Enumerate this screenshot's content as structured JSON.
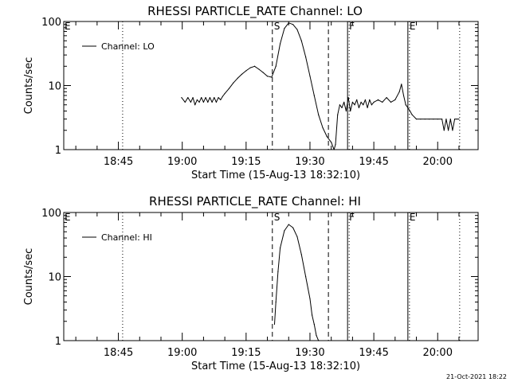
{
  "chart_data": [
    {
      "type": "line",
      "title": "RHESSI PARTICLE_RATE Channel: LO",
      "xlabel": "Start Time (15-Aug-13 18:32:10)",
      "ylabel": "Counts/sec",
      "y_scale": "log",
      "ylim": [
        1,
        100
      ],
      "y_ticks": [
        1,
        10,
        100
      ],
      "y_tick_labels": [
        "1",
        "10",
        "100"
      ],
      "xlim": [
        "18:32:10",
        "20:09:30"
      ],
      "x_ticks": [
        "18:45",
        "19:00",
        "19:15",
        "19:30",
        "19:45",
        "20:00"
      ],
      "legend": {
        "position": "top-left",
        "entries": [
          "Channel: LO"
        ]
      },
      "markers": [
        {
          "time": "18:46:00",
          "style": "dotted",
          "label": ""
        },
        {
          "time": "19:21:10",
          "style": "dashed",
          "label": "S"
        },
        {
          "time": "19:34:20",
          "style": "dashed",
          "label": ""
        },
        {
          "time": "19:38:50",
          "style": "solid",
          "label": "F"
        },
        {
          "time": "19:53:00",
          "style": "solid",
          "label": "E"
        },
        {
          "time": "20:05:10",
          "style": "dotted",
          "label": ""
        }
      ],
      "edge_labels": [
        "E"
      ],
      "series": [
        {
          "name": "Channel: LO",
          "x": [
            "18:59:50",
            "19:00:40",
            "19:01:20",
            "19:02:00",
            "19:02:30",
            "19:03:00",
            "19:03:30",
            "19:04:00",
            "19:04:30",
            "19:05:00",
            "19:05:30",
            "19:06:00",
            "19:06:30",
            "19:07:00",
            "19:07:30",
            "19:08:00",
            "19:08:30",
            "19:09:00",
            "19:09:30",
            "19:10:00",
            "19:11:00",
            "19:12:00",
            "19:13:00",
            "19:14:00",
            "19:15:00",
            "19:16:00",
            "19:17:00",
            "19:18:00",
            "19:19:00",
            "19:20:00",
            "19:21:00",
            "19:22:00",
            "19:23:00",
            "19:24:00",
            "19:25:00",
            "19:26:00",
            "19:27:00",
            "19:28:00",
            "19:29:00",
            "19:30:00",
            "19:31:00",
            "19:32:00",
            "19:33:00",
            "19:34:00",
            "19:35:00",
            "19:35:40",
            "19:36:00",
            "19:36:30",
            "19:37:00",
            "19:37:30",
            "19:38:00",
            "19:38:30",
            "19:39:00",
            "19:39:30",
            "19:40:00",
            "19:40:30",
            "19:41:00",
            "19:41:30",
            "19:42:00",
            "19:42:30",
            "19:43:00",
            "19:43:30",
            "19:44:00",
            "19:44:30",
            "19:45:00",
            "19:46:00",
            "19:47:00",
            "19:48:00",
            "19:49:00",
            "19:50:00",
            "19:51:00",
            "19:51:30",
            "19:52:00",
            "19:52:30",
            "19:53:00",
            "19:53:30",
            "19:54:00",
            "19:55:00",
            "19:56:00",
            "19:57:00",
            "19:58:00",
            "19:59:00",
            "20:00:00",
            "20:01:00",
            "20:01:30",
            "20:02:00",
            "20:02:30",
            "20:03:00",
            "20:03:30",
            "20:04:00",
            "20:04:30",
            "20:05:00"
          ],
          "y": [
            6.5,
            5.5,
            6.5,
            5.5,
            6.5,
            5.0,
            6.0,
            5.5,
            6.5,
            5.5,
            6.5,
            5.5,
            6.5,
            5.5,
            6.5,
            5.5,
            6.5,
            6.0,
            6.8,
            7.5,
            9,
            11,
            13,
            15,
            17,
            19,
            20,
            18,
            16,
            14,
            13.5,
            20,
            45,
            78,
            95,
            90,
            75,
            50,
            28,
            14,
            7,
            3.5,
            2.2,
            1.6,
            1.3,
            1.0,
            1.2,
            3.5,
            5.0,
            4.5,
            5.5,
            4.0,
            6.5,
            4.0,
            5.5,
            5.0,
            6.0,
            4.5,
            5.5,
            5.0,
            6.0,
            4.5,
            6.0,
            5.0,
            5.5,
            6.0,
            5.5,
            6.5,
            5.5,
            6.0,
            8,
            10.5,
            7,
            5,
            4.5,
            4,
            3.5,
            3,
            3,
            3,
            3,
            3,
            3,
            3,
            2,
            3,
            2,
            3,
            2,
            3,
            3,
            3
          ]
        }
      ]
    },
    {
      "type": "line",
      "title": "RHESSI PARTICLE_RATE Channel: HI",
      "xlabel": "Start Time (15-Aug-13 18:32:10)",
      "ylabel": "Counts/sec",
      "y_scale": "log",
      "ylim": [
        1,
        100
      ],
      "y_ticks": [
        1,
        10,
        100
      ],
      "y_tick_labels": [
        "1",
        "10",
        "100"
      ],
      "xlim": [
        "18:32:10",
        "20:09:30"
      ],
      "x_ticks": [
        "18:45",
        "19:00",
        "19:15",
        "19:30",
        "19:45",
        "20:00"
      ],
      "legend": {
        "position": "top-left",
        "entries": [
          "Channel: HI"
        ]
      },
      "markers": [
        {
          "time": "18:46:00",
          "style": "dotted",
          "label": ""
        },
        {
          "time": "19:21:10",
          "style": "dashed",
          "label": "S"
        },
        {
          "time": "19:34:20",
          "style": "dashed",
          "label": ""
        },
        {
          "time": "19:38:50",
          "style": "solid",
          "label": "F"
        },
        {
          "time": "19:53:00",
          "style": "solid",
          "label": "E"
        },
        {
          "time": "20:05:10",
          "style": "dotted",
          "label": ""
        }
      ],
      "edge_labels": [
        "E"
      ],
      "series": [
        {
          "name": "Channel: HI",
          "x": [
            "19:21:40",
            "19:22:00",
            "19:22:30",
            "19:23:00",
            "19:24:00",
            "19:25:00",
            "19:26:00",
            "19:27:00",
            "19:28:00",
            "19:29:00",
            "19:30:00",
            "19:30:30",
            "19:31:00",
            "19:31:30",
            "19:32:00",
            "19:32:10"
          ],
          "y": [
            1.8,
            4,
            12,
            28,
            52,
            65,
            58,
            42,
            22,
            10,
            4.5,
            2.5,
            1.8,
            1.2,
            1.0,
            1.0
          ]
        }
      ]
    }
  ],
  "footer": {
    "timestamp": "21-Oct-2021 18:22"
  }
}
